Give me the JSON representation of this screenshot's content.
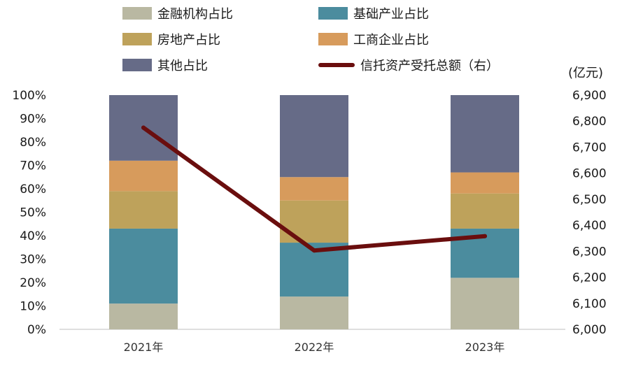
{
  "chart_data": {
    "type": "bar",
    "stacked": true,
    "categories": [
      "2021年",
      "2022年",
      "2023年"
    ],
    "series": [
      {
        "name": "金融机构占比",
        "color": "#b9b8a2",
        "values": [
          11,
          14,
          22
        ]
      },
      {
        "name": "基础产业占比",
        "color": "#4b8c9e",
        "values": [
          32,
          23,
          21
        ]
      },
      {
        "name": "房地产占比",
        "color": "#bea25b",
        "values": [
          16,
          18,
          15
        ]
      },
      {
        "name": "工商企业占比",
        "color": "#d79b5c",
        "values": [
          13,
          10,
          9
        ]
      },
      {
        "name": "其他占比",
        "color": "#666b87",
        "values": [
          28,
          35,
          33
        ]
      }
    ],
    "line_series": {
      "name": "信托资产受托总额（右）",
      "color": "#6a0e0e",
      "axis": "right",
      "values": [
        6775,
        6303,
        6358
      ]
    },
    "left_axis": {
      "min": 0,
      "max": 100,
      "ticks": [
        "0%",
        "10%",
        "20%",
        "30%",
        "40%",
        "50%",
        "60%",
        "70%",
        "80%",
        "90%",
        "100%"
      ]
    },
    "right_axis": {
      "unit": "(亿元)",
      "min": 6000,
      "max": 6900,
      "ticks": [
        "6,000",
        "6,100",
        "6,200",
        "6,300",
        "6,400",
        "6,500",
        "6,600",
        "6,700",
        "6,800",
        "6,900"
      ]
    },
    "legend_placement": "top",
    "grid": false
  }
}
